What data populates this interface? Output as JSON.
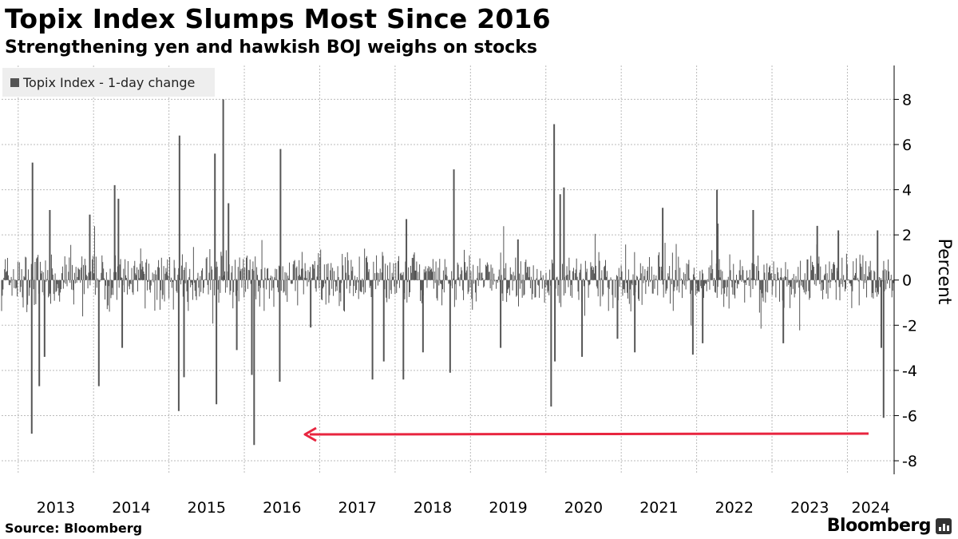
{
  "title": "Topix Index Slumps Most Since 2016",
  "subtitle": "Strengthening yen and hawkish BOJ weighs on stocks",
  "source": "Source: Bloomberg",
  "brand": "Bloomberg",
  "colors": {
    "series": "#555555",
    "annotation": "#e8253f",
    "grid": "#bbbbbb"
  },
  "chart_data": {
    "type": "bar",
    "x_start": 2012.78,
    "x_end": 2024.62,
    "year_ticks": [
      "2013",
      "2014",
      "2015",
      "2016",
      "2017",
      "2018",
      "2019",
      "2020",
      "2021",
      "2022",
      "2023",
      "2024"
    ],
    "y_ticks": [
      8,
      6,
      4,
      2,
      0,
      -2,
      -4,
      -6,
      -8
    ],
    "ylim": [
      -8.6,
      9.5
    ],
    "ylabel": "Percent",
    "y_axis_position": "right",
    "grid": true,
    "legend_position": "top-left",
    "series": [
      {
        "name": "Topix Index - 1-day change",
        "typical_abs_change": 0.9,
        "notable_moves": [
          {
            "x": 2013.19,
            "y": 5.2
          },
          {
            "x": 2013.18,
            "y": -6.8
          },
          {
            "x": 2013.28,
            "y": -4.7
          },
          {
            "x": 2013.35,
            "y": -3.4
          },
          {
            "x": 2013.42,
            "y": 3.1
          },
          {
            "x": 2013.95,
            "y": 2.9
          },
          {
            "x": 2014.07,
            "y": -4.7
          },
          {
            "x": 2014.28,
            "y": 4.2
          },
          {
            "x": 2014.33,
            "y": 3.6
          },
          {
            "x": 2014.38,
            "y": -3.0
          },
          {
            "x": 2015.14,
            "y": 6.4
          },
          {
            "x": 2015.13,
            "y": -5.8
          },
          {
            "x": 2015.2,
            "y": -4.3
          },
          {
            "x": 2015.61,
            "y": 5.6
          },
          {
            "x": 2015.63,
            "y": -5.5
          },
          {
            "x": 2015.72,
            "y": 8.0
          },
          {
            "x": 2015.79,
            "y": 3.4
          },
          {
            "x": 2015.9,
            "y": -3.1
          },
          {
            "x": 2016.1,
            "y": -4.2
          },
          {
            "x": 2016.13,
            "y": -7.3
          },
          {
            "x": 2016.48,
            "y": 5.8
          },
          {
            "x": 2016.47,
            "y": -4.5
          },
          {
            "x": 2016.88,
            "y": -2.1
          },
          {
            "x": 2017.7,
            "y": -4.4
          },
          {
            "x": 2017.85,
            "y": -3.6
          },
          {
            "x": 2018.11,
            "y": -4.4
          },
          {
            "x": 2018.15,
            "y": 2.7
          },
          {
            "x": 2018.37,
            "y": -3.2
          },
          {
            "x": 2018.78,
            "y": 4.9
          },
          {
            "x": 2018.73,
            "y": -4.1
          },
          {
            "x": 2019.4,
            "y": -3.0
          },
          {
            "x": 2019.63,
            "y": 1.8
          },
          {
            "x": 2020.07,
            "y": -5.6
          },
          {
            "x": 2020.11,
            "y": 6.9
          },
          {
            "x": 2020.12,
            "y": -3.6
          },
          {
            "x": 2020.19,
            "y": 3.8
          },
          {
            "x": 2020.24,
            "y": 4.1
          },
          {
            "x": 2020.48,
            "y": -3.4
          },
          {
            "x": 2020.95,
            "y": -2.6
          },
          {
            "x": 2021.18,
            "y": -3.2
          },
          {
            "x": 2021.55,
            "y": 3.2
          },
          {
            "x": 2021.95,
            "y": -3.3
          },
          {
            "x": 2022.08,
            "y": -2.8
          },
          {
            "x": 2022.27,
            "y": 4.0
          },
          {
            "x": 2022.28,
            "y": 2.5
          },
          {
            "x": 2022.75,
            "y": 3.1
          },
          {
            "x": 2023.15,
            "y": -2.8
          },
          {
            "x": 2023.6,
            "y": 2.4
          },
          {
            "x": 2023.88,
            "y": 2.2
          },
          {
            "x": 2024.4,
            "y": 2.2
          },
          {
            "x": 2024.45,
            "y": -3.0
          },
          {
            "x": 2024.48,
            "y": -6.1
          }
        ]
      }
    ]
  }
}
